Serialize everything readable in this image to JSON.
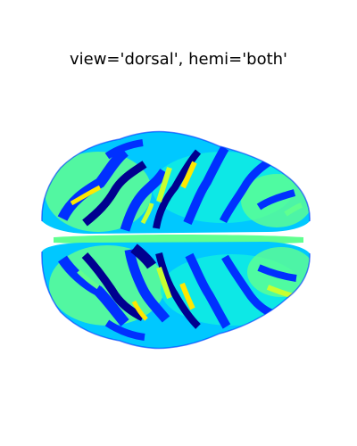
{
  "figure": {
    "title": "view='dorsal', hemi='both'"
  },
  "surface": {
    "view": "dorsal",
    "hemispheres": [
      "right",
      "left"
    ],
    "colormap": [
      "#00008f",
      "#0030ff",
      "#00c8ff",
      "#10f0e0",
      "#60ff90",
      "#c8ff30",
      "#ffe800",
      "#ffb000"
    ],
    "background_color": "#ffffff"
  }
}
